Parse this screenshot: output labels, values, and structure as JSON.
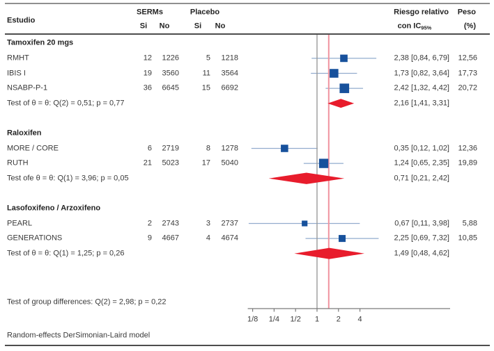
{
  "table": {
    "study_header": "Estudio",
    "group1_header": "SERMs",
    "group2_header": "Placebo",
    "sub_headers": [
      "Si",
      "No",
      "Si",
      "No"
    ],
    "rr_header_line1": "Riesgo relativo",
    "rr_header_line2": "con IC",
    "rr_header_sub": "95%",
    "weight_header_line1": "Peso",
    "weight_header_line2": "(%)"
  },
  "footer": {
    "group_diff_test": "Test of group differences: Q(2) = 2,98; p = 0,22",
    "model_note": "Random-effects DerSimonian-Laird model"
  },
  "colors": {
    "square": "#17519c",
    "diamond": "#e81c2c",
    "ci_line": "#92accd",
    "reference_line": "#9a9a9a",
    "overall_line": "#f0939f",
    "axis": "#7a7a7a",
    "text": "#3a3a3a"
  },
  "chart_data": {
    "type": "forest",
    "x_scale": "log2",
    "x_ticks": [
      {
        "label": "1/8",
        "value": 0.125
      },
      {
        "label": "1/4",
        "value": 0.25
      },
      {
        "label": "1/2",
        "value": 0.5
      },
      {
        "label": "1",
        "value": 1
      },
      {
        "label": "2",
        "value": 2
      },
      {
        "label": "4",
        "value": 4
      }
    ],
    "reference_value": 1,
    "overall_line_value": 1.46,
    "groups": [
      {
        "name": "Tamoxifen 20 mgs",
        "studies": [
          {
            "name": "RMHT",
            "serms_si": "12",
            "serms_no": "1226",
            "placebo_si": "5",
            "placebo_no": "1218",
            "rr": 2.38,
            "ci": [
              0.84,
              6.79
            ],
            "label": "2,38 [0,84, 6,79]",
            "weight": 12.56,
            "weight_label": "12,56"
          },
          {
            "name": "IBIS I",
            "serms_si": "19",
            "serms_no": "3560",
            "placebo_si": "11",
            "placebo_no": "3564",
            "rr": 1.73,
            "ci": [
              0.82,
              3.64
            ],
            "label": "1,73 [0,82, 3,64]",
            "weight": 17.73,
            "weight_label": "17,73"
          },
          {
            "name": "NSABP-P-1",
            "serms_si": "36",
            "serms_no": "6645",
            "placebo_si": "15",
            "placebo_no": "6692",
            "rr": 2.42,
            "ci": [
              1.32,
              4.42
            ],
            "label": "2,42 [1,32, 4,42]",
            "weight": 20.72,
            "weight_label": "20,72"
          }
        ],
        "test_label": "Test of θ = θ: Q(2) = 0,51; p = 0,77",
        "subtotal": {
          "rr": 2.16,
          "ci": [
            1.41,
            3.31
          ],
          "label": "2,16 [1,41, 3,31]"
        }
      },
      {
        "name": "Raloxifen",
        "studies": [
          {
            "name": "MORE / CORE",
            "serms_si": "6",
            "serms_no": "2719",
            "placebo_si": "8",
            "placebo_no": "1278",
            "rr": 0.35,
            "ci": [
              0.12,
              1.02
            ],
            "label": "0,35 [0,12, 1,02]",
            "weight": 12.36,
            "weight_label": "12,36"
          },
          {
            "name": "RUTH",
            "serms_si": "21",
            "serms_no": "5023",
            "placebo_si": "17",
            "placebo_no": "5040",
            "rr": 1.24,
            "ci": [
              0.65,
              2.35
            ],
            "label": "1,24 [0,65, 2,35]",
            "weight": 19.89,
            "weight_label": "19,89"
          }
        ],
        "test_label": "Test ofe θ = θ: Q(1) = 3,96; p = 0,05",
        "subtotal": {
          "rr": 0.71,
          "ci": [
            0.21,
            2.42
          ],
          "label": "0,71 [0,21, 2,42]"
        }
      },
      {
        "name": "Lasofoxifeno / Arzoxifeno",
        "studies": [
          {
            "name": "PEARL",
            "serms_si": "2",
            "serms_no": "2743",
            "placebo_si": "3",
            "placebo_no": "2737",
            "rr": 0.67,
            "ci": [
              0.11,
              3.98
            ],
            "label": "0,67 [0,11, 3,98]",
            "weight": 5.88,
            "weight_label": "5,88"
          },
          {
            "name": "GENERATIONS",
            "serms_si": "9",
            "serms_no": "4667",
            "placebo_si": "4",
            "placebo_no": "4674",
            "rr": 2.25,
            "ci": [
              0.69,
              7.32
            ],
            "label": "2,25 [0,69, 7,32]",
            "weight": 10.85,
            "weight_label": "10,85"
          }
        ],
        "test_label": "Test of θ = θ: Q(1) = 1,25; p = 0,26",
        "subtotal": {
          "rr": 1.49,
          "ci": [
            0.48,
            4.62
          ],
          "label": "1,49 [0,48, 4,62]"
        }
      }
    ]
  }
}
